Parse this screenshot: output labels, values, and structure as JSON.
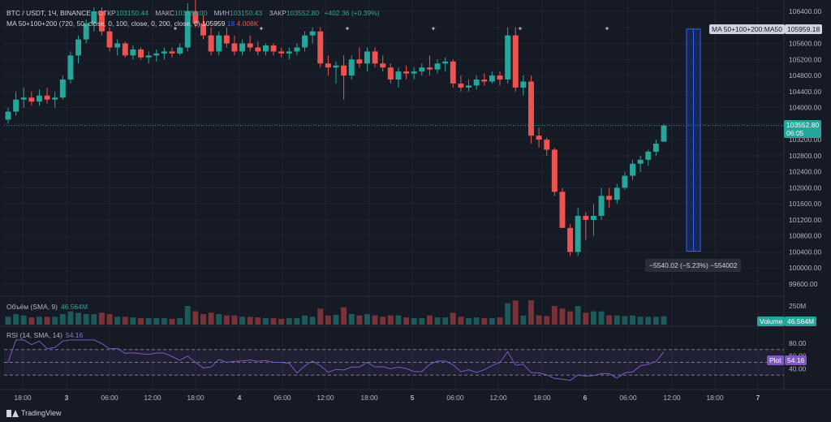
{
  "header": {
    "symbol": "BTC / USDT, 1Ч, BINANCE",
    "open_label": "ОТКР",
    "open_value": "103150.44",
    "high_label": "МАКС",
    "high_value": "103589.00",
    "low_label": "МИН",
    "low_value": "103150.43",
    "close_label": "ЗАКР",
    "close_value": "103552.80",
    "change": "+402.36 (+0.39%)"
  },
  "ma_legend": {
    "label": "MA 50+100+200 (720, 50, close, 0, 100, close, 0, 200, close, 0)",
    "value1": "105959",
    "value2": "18",
    "value3": "4.008K"
  },
  "volume_legend": {
    "label": "Объём (SMA, 9)",
    "value": "46.564M"
  },
  "rsi_legend": {
    "label": "RSI (14, SMA, 14)",
    "value": "54.16"
  },
  "price_axis": [
    "106400.00",
    "106000.00",
    "105600.00",
    "105200.00",
    "104800.00",
    "104400.00",
    "104000.00",
    "103600.00",
    "103200.00",
    "102800.00",
    "102400.00",
    "102000.00",
    "101600.00",
    "101200.00",
    "100800.00",
    "100400.00",
    "100000.00",
    "99600.00"
  ],
  "volume_axis": [
    "250M"
  ],
  "rsi_axis": [
    "80.00",
    "60.00",
    "40.00"
  ],
  "time_axis": [
    "18:00",
    "3",
    "06:00",
    "12:00",
    "18:00",
    "4",
    "06:00",
    "12:00",
    "18:00",
    "5",
    "06:00",
    "12:00",
    "18:00",
    "6",
    "06:00",
    "12:00",
    "18:00",
    "7"
  ],
  "tags": {
    "ma": "MA 50+100+200:MA50",
    "ma_value": "105959.18",
    "price": "103552.80",
    "countdown": "06:05",
    "volume_label": "Volume",
    "volume_value": "46.564M",
    "plot_label": "Plot",
    "rsi_value": "54.16"
  },
  "measure_text": "−5540.02 (−5.23%) −554002",
  "footer": {
    "brand": "TradingView"
  },
  "colors": {
    "up": "#26a69a",
    "down": "#ef5350",
    "bg": "#161a25",
    "rsi": "#7e57c2",
    "measure": "#2962ff"
  },
  "chart_data": {
    "type": "candlestick",
    "price_range": [
      99400,
      106600
    ],
    "last_price": 103552.8,
    "candles": [
      [
        103700,
        104000,
        103600,
        103900
      ],
      [
        103900,
        104400,
        103800,
        104200
      ],
      [
        104200,
        104500,
        104000,
        104250
      ],
      [
        104250,
        104400,
        104050,
        104150
      ],
      [
        104150,
        104450,
        104050,
        104300
      ],
      [
        104300,
        104500,
        104100,
        104200
      ],
      [
        104200,
        104400,
        104000,
        104250
      ],
      [
        104250,
        104800,
        104200,
        104700
      ],
      [
        104700,
        105400,
        104600,
        105300
      ],
      [
        105300,
        105800,
        105100,
        105700
      ],
      [
        105700,
        106200,
        105600,
        106100
      ],
      [
        106100,
        106500,
        105900,
        106400
      ],
      [
        106400,
        106500,
        105800,
        105900
      ],
      [
        105900,
        106000,
        105400,
        105500
      ],
      [
        105500,
        105700,
        105300,
        105600
      ],
      [
        105600,
        105650,
        105250,
        105300
      ],
      [
        105300,
        105550,
        105200,
        105450
      ],
      [
        105450,
        105500,
        105200,
        105250
      ],
      [
        105250,
        105400,
        105100,
        105300
      ],
      [
        105300,
        105450,
        105150,
        105350
      ],
      [
        105350,
        105500,
        105200,
        105400
      ],
      [
        105400,
        105500,
        105250,
        105350
      ],
      [
        105350,
        105600,
        105300,
        105500
      ],
      [
        105500,
        106600,
        105400,
        106400
      ],
      [
        106400,
        106800,
        106000,
        106100
      ],
      [
        106100,
        106300,
        105700,
        105800
      ],
      [
        105800,
        106000,
        105300,
        105400
      ],
      [
        105400,
        105900,
        105300,
        105800
      ],
      [
        105800,
        106000,
        105500,
        105600
      ],
      [
        105600,
        105800,
        105300,
        105400
      ],
      [
        105400,
        105700,
        105300,
        105600
      ],
      [
        105600,
        105800,
        105400,
        105500
      ],
      [
        105500,
        105650,
        105300,
        105400
      ],
      [
        105400,
        105600,
        105300,
        105550
      ],
      [
        105550,
        105600,
        105300,
        105400
      ],
      [
        105400,
        105500,
        105250,
        105350
      ],
      [
        105350,
        105500,
        105200,
        105400
      ],
      [
        105400,
        105600,
        105300,
        105500
      ],
      [
        105500,
        105900,
        105400,
        105800
      ],
      [
        105800,
        106000,
        105600,
        105900
      ],
      [
        105900,
        106000,
        105000,
        105100
      ],
      [
        105100,
        105300,
        104800,
        105000
      ],
      [
        105000,
        105150,
        104600,
        105050
      ],
      [
        105050,
        105300,
        104200,
        104800
      ],
      [
        104800,
        105300,
        104700,
        105200
      ],
      [
        105200,
        105500,
        105000,
        105100
      ],
      [
        105100,
        105500,
        104900,
        105400
      ],
      [
        105400,
        105500,
        105000,
        105100
      ],
      [
        105100,
        105300,
        104900,
        105000
      ],
      [
        105000,
        105100,
        104600,
        104700
      ],
      [
        104700,
        105000,
        104500,
        104900
      ],
      [
        104900,
        105050,
        104700,
        104850
      ],
      [
        104850,
        105000,
        104700,
        104900
      ],
      [
        104900,
        105100,
        104800,
        105000
      ],
      [
        105000,
        105300,
        104800,
        104950
      ],
      [
        104950,
        105200,
        104850,
        105100
      ],
      [
        105100,
        105250,
        104900,
        105150
      ],
      [
        105150,
        105200,
        104500,
        104600
      ],
      [
        104600,
        104800,
        104400,
        104500
      ],
      [
        104500,
        104700,
        104400,
        104550
      ],
      [
        104550,
        104800,
        104450,
        104700
      ],
      [
        104700,
        104850,
        104550,
        104650
      ],
      [
        104650,
        104900,
        104600,
        104800
      ],
      [
        104800,
        104900,
        104550,
        104700
      ],
      [
        104700,
        106000,
        104600,
        105800
      ],
      [
        105800,
        106000,
        104400,
        104500
      ],
      [
        104500,
        104800,
        104300,
        104650
      ],
      [
        104650,
        104800,
        103100,
        103300
      ],
      [
        103300,
        103500,
        103000,
        103200
      ],
      [
        103200,
        103250,
        102800,
        102950
      ],
      [
        102950,
        103000,
        101800,
        101900
      ],
      [
        101900,
        102000,
        101000,
        101000
      ],
      [
        101000,
        101100,
        100300,
        100400
      ],
      [
        100400,
        101500,
        100300,
        101300
      ],
      [
        101300,
        101400,
        100700,
        101200
      ],
      [
        101200,
        101600,
        100800,
        101300
      ],
      [
        101300,
        102000,
        101200,
        101800
      ],
      [
        101800,
        102000,
        101500,
        101700
      ],
      [
        101700,
        102100,
        101600,
        102000
      ],
      [
        102000,
        102400,
        101950,
        102300
      ],
      [
        102300,
        102700,
        102200,
        102600
      ],
      [
        102600,
        102800,
        102400,
        102700
      ],
      [
        102700,
        102950,
        102550,
        102900
      ],
      [
        102900,
        103200,
        102800,
        103100
      ],
      [
        103150,
        103589,
        103150,
        103553
      ]
    ]
  }
}
